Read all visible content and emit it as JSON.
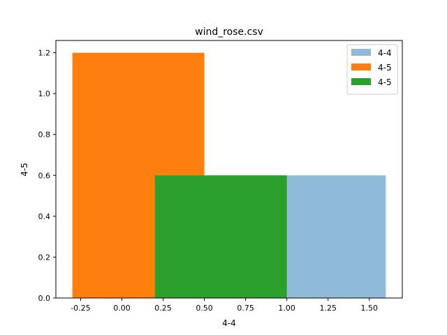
{
  "chart_data": {
    "type": "bar",
    "title": "wind_rose.csv",
    "xlabel": "4-4",
    "ylabel": "4-5",
    "xlim": [
      -0.4,
      1.7
    ],
    "ylim": [
      0.0,
      1.26
    ],
    "xticks": [
      "-0.25",
      "0.00",
      "0.25",
      "0.50",
      "0.75",
      "1.00",
      "1.25",
      "1.50"
    ],
    "xtick_values": [
      -0.25,
      0.0,
      0.25,
      0.5,
      0.75,
      1.0,
      1.25,
      1.5
    ],
    "yticks": [
      "0.0",
      "0.2",
      "0.4",
      "0.6",
      "0.8",
      "1.0",
      "1.2"
    ],
    "ytick_values": [
      0.0,
      0.2,
      0.4,
      0.6,
      0.8,
      1.0,
      1.2
    ],
    "grid": false,
    "legend_position": "top-right",
    "series": [
      {
        "name": "4-4",
        "color": "#8fbbd9",
        "bars": [
          {
            "x0": 0.4,
            "x1": 1.6,
            "value": 0.6
          }
        ]
      },
      {
        "name": "4-5",
        "color": "#ff7f0e",
        "bars": [
          {
            "x0": -0.3,
            "x1": 0.5,
            "value": 1.2
          }
        ]
      },
      {
        "name": "4-5",
        "color": "#2ca02c",
        "bars": [
          {
            "x0": 0.2,
            "x1": 1.0,
            "value": 0.6
          }
        ]
      }
    ]
  }
}
